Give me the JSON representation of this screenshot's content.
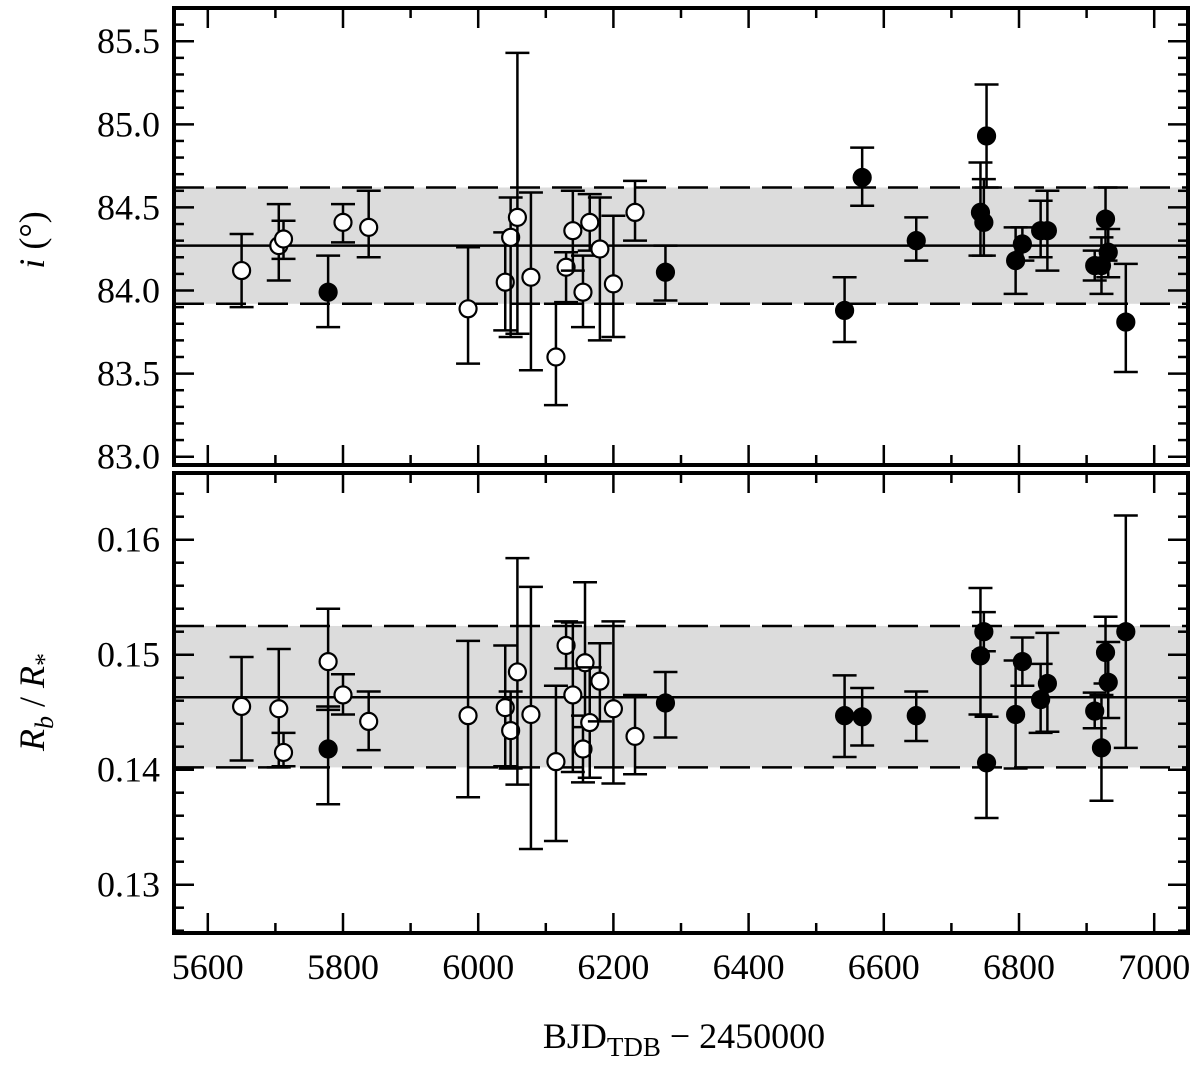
{
  "figure": {
    "xlabel_main": "BJD",
    "xlabel_sub": "TDB",
    "xlabel_rest": " − 2450000"
  },
  "chart_data": [
    {
      "type": "scatter",
      "panel": "top",
      "ylabel_symbol": "i",
      "ylabel_unit": " (°)",
      "xlim": [
        5550,
        7050
      ],
      "ylim": [
        82.95,
        85.7
      ],
      "yticks": [
        83.0,
        83.5,
        84.0,
        84.5,
        85.0,
        85.5
      ],
      "ytick_labels": [
        "83.0",
        "83.5",
        "84.0",
        "84.5",
        "85.0",
        "85.5"
      ],
      "mean": 84.27,
      "band": [
        83.92,
        84.62
      ],
      "grid": false,
      "series": [
        {
          "marker": "open-circle",
          "points": [
            {
              "x": 5650,
              "y": 84.12,
              "lo": 83.9,
              "hi": 84.34
            },
            {
              "x": 5705,
              "y": 84.27,
              "lo": 84.06,
              "hi": 84.52
            },
            {
              "x": 5712,
              "y": 84.31,
              "lo": 84.19,
              "hi": 84.42
            },
            {
              "x": 5800,
              "y": 84.41,
              "lo": 84.29,
              "hi": 84.52
            },
            {
              "x": 5838,
              "y": 84.38,
              "lo": 84.2,
              "hi": 84.6
            },
            {
              "x": 5985,
              "y": 83.89,
              "lo": 83.56,
              "hi": 84.26
            },
            {
              "x": 6040,
              "y": 84.05,
              "lo": 83.76,
              "hi": 84.35
            },
            {
              "x": 6048,
              "y": 84.32,
              "lo": 83.72,
              "hi": 84.56
            },
            {
              "x": 6058,
              "y": 84.44,
              "lo": 83.74,
              "hi": 85.43
            },
            {
              "x": 6078,
              "y": 84.08,
              "lo": 83.52,
              "hi": 84.59
            },
            {
              "x": 6115,
              "y": 83.6,
              "lo": 83.31,
              "hi": 83.92
            },
            {
              "x": 6130,
              "y": 84.14,
              "lo": 83.93,
              "hi": 84.23
            },
            {
              "x": 6140,
              "y": 84.36,
              "lo": 84.12,
              "hi": 84.6
            },
            {
              "x": 6155,
              "y": 83.99,
              "lo": 83.78,
              "hi": 84.21
            },
            {
              "x": 6165,
              "y": 84.41,
              "lo": 84.24,
              "hi": 84.58
            },
            {
              "x": 6180,
              "y": 84.25,
              "lo": 83.7,
              "hi": 84.56
            },
            {
              "x": 6200,
              "y": 84.04,
              "lo": 83.72,
              "hi": 84.45
            },
            {
              "x": 6232,
              "y": 84.47,
              "lo": 84.3,
              "hi": 84.66
            }
          ]
        },
        {
          "marker": "filled-circle",
          "points": [
            {
              "x": 5778,
              "y": 83.99,
              "lo": 83.78,
              "hi": 84.21
            },
            {
              "x": 6277,
              "y": 84.11,
              "lo": 83.94,
              "hi": 84.27
            },
            {
              "x": 6542,
              "y": 83.88,
              "lo": 83.69,
              "hi": 84.08
            },
            {
              "x": 6568,
              "y": 84.68,
              "lo": 84.51,
              "hi": 84.86
            },
            {
              "x": 6648,
              "y": 84.3,
              "lo": 84.18,
              "hi": 84.44
            },
            {
              "x": 6743,
              "y": 84.47,
              "lo": 84.21,
              "hi": 84.77
            },
            {
              "x": 6748,
              "y": 84.41,
              "lo": 84.21,
              "hi": 84.67
            },
            {
              "x": 6752,
              "y": 84.93,
              "lo": 84.62,
              "hi": 85.24
            },
            {
              "x": 6795,
              "y": 84.18,
              "lo": 83.98,
              "hi": 84.38
            },
            {
              "x": 6805,
              "y": 84.28,
              "lo": 84.18,
              "hi": 84.38
            },
            {
              "x": 6832,
              "y": 84.36,
              "lo": 84.2,
              "hi": 84.54
            },
            {
              "x": 6842,
              "y": 84.36,
              "lo": 84.12,
              "hi": 84.6
            },
            {
              "x": 6912,
              "y": 84.15,
              "lo": 84.06,
              "hi": 84.24
            },
            {
              "x": 6922,
              "y": 84.15,
              "lo": 83.98,
              "hi": 84.32
            },
            {
              "x": 6928,
              "y": 84.43,
              "lo": 84.18,
              "hi": 84.62
            },
            {
              "x": 6932,
              "y": 84.23,
              "lo": 84.08,
              "hi": 84.37
            },
            {
              "x": 6958,
              "y": 83.81,
              "lo": 83.51,
              "hi": 84.16
            }
          ]
        }
      ]
    },
    {
      "type": "scatter",
      "panel": "bottom",
      "ylabel_r1": "R",
      "ylabel_r1_sub": "b",
      "ylabel_sep": " / ",
      "ylabel_r2": "R",
      "ylabel_r2_sub": "*",
      "xlim": [
        5550,
        7050
      ],
      "ylim": [
        0.1258,
        0.1658
      ],
      "yticks": [
        0.13,
        0.14,
        0.15,
        0.16
      ],
      "ytick_labels": [
        "0.13",
        "0.14",
        "0.15",
        "0.16"
      ],
      "xticks": [
        5600,
        5800,
        6000,
        6200,
        6400,
        6600,
        6800,
        7000
      ],
      "xtick_labels": [
        "5600",
        "5800",
        "6000",
        "6200",
        "6400",
        "6600",
        "6800",
        "7000"
      ],
      "mean": 0.1463,
      "band": [
        0.1402,
        0.1525
      ],
      "grid": false,
      "series": [
        {
          "marker": "open-circle",
          "points": [
            {
              "x": 5650,
              "y": 0.1455,
              "lo": 0.1408,
              "hi": 0.1498
            },
            {
              "x": 5705,
              "y": 0.1453,
              "lo": 0.1402,
              "hi": 0.1505
            },
            {
              "x": 5712,
              "y": 0.1415,
              "lo": 0.1403,
              "hi": 0.1432
            },
            {
              "x": 5778,
              "y": 0.1494,
              "lo": 0.1452,
              "hi": 0.154
            },
            {
              "x": 5800,
              "y": 0.1465,
              "lo": 0.1448,
              "hi": 0.1483
            },
            {
              "x": 5838,
              "y": 0.1442,
              "lo": 0.1417,
              "hi": 0.1468
            },
            {
              "x": 5985,
              "y": 0.1447,
              "lo": 0.1376,
              "hi": 0.1512
            },
            {
              "x": 6040,
              "y": 0.1454,
              "lo": 0.1403,
              "hi": 0.1508
            },
            {
              "x": 6048,
              "y": 0.1434,
              "lo": 0.1401,
              "hi": 0.1468
            },
            {
              "x": 6058,
              "y": 0.1485,
              "lo": 0.1387,
              "hi": 0.1584
            },
            {
              "x": 6078,
              "y": 0.1448,
              "lo": 0.1331,
              "hi": 0.1559
            },
            {
              "x": 6115,
              "y": 0.1407,
              "lo": 0.1338,
              "hi": 0.1473
            },
            {
              "x": 6130,
              "y": 0.1508,
              "lo": 0.1488,
              "hi": 0.1529
            },
            {
              "x": 6140,
              "y": 0.1465,
              "lo": 0.1398,
              "hi": 0.1528
            },
            {
              "x": 6155,
              "y": 0.1418,
              "lo": 0.1389,
              "hi": 0.1447
            },
            {
              "x": 6158,
              "y": 0.1493,
              "lo": 0.1437,
              "hi": 0.1563
            },
            {
              "x": 6165,
              "y": 0.1441,
              "lo": 0.1393,
              "hi": 0.1489
            },
            {
              "x": 6180,
              "y": 0.1477,
              "lo": 0.1442,
              "hi": 0.151
            },
            {
              "x": 6200,
              "y": 0.1453,
              "lo": 0.1388,
              "hi": 0.1529
            },
            {
              "x": 6232,
              "y": 0.1429,
              "lo": 0.1396,
              "hi": 0.1465
            }
          ]
        },
        {
          "marker": "filled-circle",
          "points": [
            {
              "x": 5778,
              "y": 0.1418,
              "lo": 0.137,
              "hi": 0.1455
            },
            {
              "x": 6277,
              "y": 0.1458,
              "lo": 0.1428,
              "hi": 0.1485
            },
            {
              "x": 6542,
              "y": 0.1447,
              "lo": 0.1411,
              "hi": 0.1482
            },
            {
              "x": 6568,
              "y": 0.1446,
              "lo": 0.1421,
              "hi": 0.1471
            },
            {
              "x": 6648,
              "y": 0.1447,
              "lo": 0.1425,
              "hi": 0.1468
            },
            {
              "x": 6743,
              "y": 0.1499,
              "lo": 0.1448,
              "hi": 0.1558
            },
            {
              "x": 6748,
              "y": 0.152,
              "lo": 0.1503,
              "hi": 0.1537
            },
            {
              "x": 6752,
              "y": 0.1406,
              "lo": 0.1358,
              "hi": 0.1446
            },
            {
              "x": 6795,
              "y": 0.1448,
              "lo": 0.1401,
              "hi": 0.1495
            },
            {
              "x": 6805,
              "y": 0.1494,
              "lo": 0.1473,
              "hi": 0.1515
            },
            {
              "x": 6832,
              "y": 0.1461,
              "lo": 0.1432,
              "hi": 0.1492
            },
            {
              "x": 6842,
              "y": 0.1475,
              "lo": 0.1433,
              "hi": 0.1519
            },
            {
              "x": 6912,
              "y": 0.1451,
              "lo": 0.1436,
              "hi": 0.1467
            },
            {
              "x": 6922,
              "y": 0.1419,
              "lo": 0.1373,
              "hi": 0.1465
            },
            {
              "x": 6928,
              "y": 0.1502,
              "lo": 0.1475,
              "hi": 0.1533
            },
            {
              "x": 6932,
              "y": 0.1476,
              "lo": 0.1445,
              "hi": 0.1511
            },
            {
              "x": 6958,
              "y": 0.152,
              "lo": 0.1419,
              "hi": 0.1621
            }
          ]
        }
      ]
    }
  ]
}
